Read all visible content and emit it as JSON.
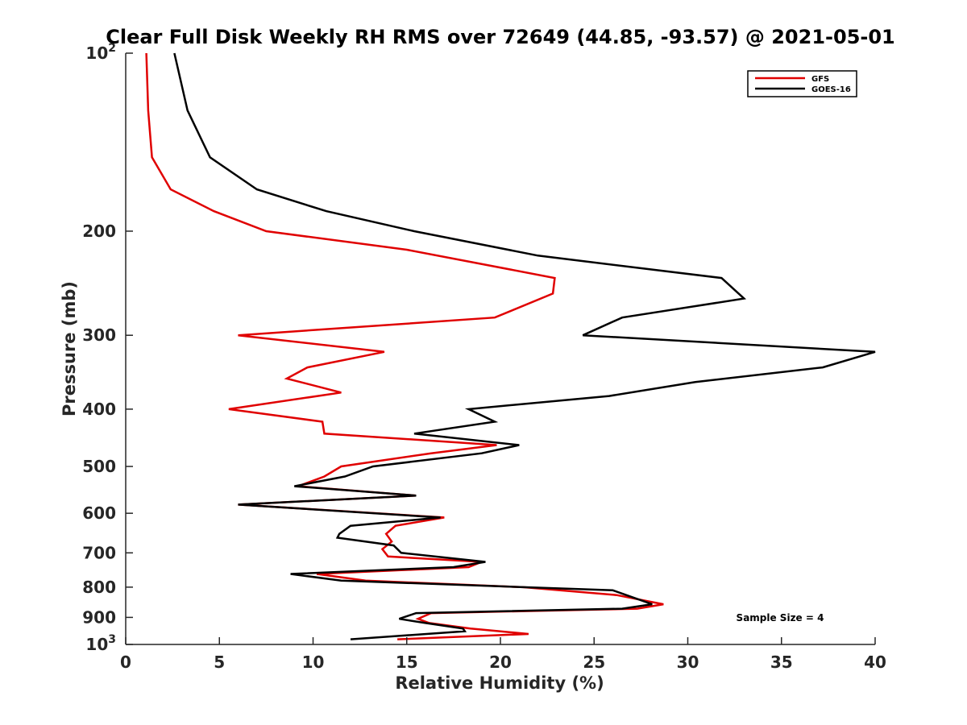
{
  "chart_data": {
    "type": "line",
    "title": "Clear Full Disk Weekly RH RMS over 72649 (44.85, -93.57) @ 2021-05-01",
    "xlabel": "Relative Humidity (%)",
    "ylabel": "Pressure (mb)",
    "xlim": [
      0,
      40
    ],
    "ylim": [
      100,
      1000
    ],
    "yscale": "log",
    "y_reversed": true,
    "grid": false,
    "legend_position": "top-right",
    "annotation": "Sample Size = 4",
    "x_ticks": [
      "0",
      "5",
      "10",
      "15",
      "20",
      "25",
      "30",
      "35",
      "40"
    ],
    "x_tick_values": [
      0,
      5,
      10,
      15,
      20,
      25,
      30,
      35,
      40
    ],
    "y_ticks": [
      {
        "value": 100,
        "base": "10",
        "exp": "2"
      },
      {
        "value": 200,
        "base": "200",
        "exp": ""
      },
      {
        "value": 300,
        "base": "300",
        "exp": ""
      },
      {
        "value": 400,
        "base": "400",
        "exp": ""
      },
      {
        "value": 500,
        "base": "500",
        "exp": ""
      },
      {
        "value": 600,
        "base": "600",
        "exp": ""
      },
      {
        "value": 700,
        "base": "700",
        "exp": ""
      },
      {
        "value": 800,
        "base": "800",
        "exp": ""
      },
      {
        "value": 900,
        "base": "900",
        "exp": ""
      },
      {
        "value": 1000,
        "base": "10",
        "exp": "3"
      }
    ],
    "series": [
      {
        "name": "GFS",
        "color": "#e00000",
        "points": [
          [
            1.1,
            100
          ],
          [
            1.2,
            125
          ],
          [
            1.4,
            150
          ],
          [
            2.4,
            170
          ],
          [
            4.7,
            185
          ],
          [
            7.5,
            200
          ],
          [
            15,
            215
          ],
          [
            22.9,
            240
          ],
          [
            22.8,
            255
          ],
          [
            19.7,
            280
          ],
          [
            6.0,
            300
          ],
          [
            13.8,
            320
          ],
          [
            9.7,
            340
          ],
          [
            8.6,
            355
          ],
          [
            11.5,
            375
          ],
          [
            5.5,
            400
          ],
          [
            10.5,
            420
          ],
          [
            10.6,
            440
          ],
          [
            19.8,
            460
          ],
          [
            16.3,
            475
          ],
          [
            11.5,
            500
          ],
          [
            10.6,
            520
          ],
          [
            9.2,
            540
          ],
          [
            15.5,
            560
          ],
          [
            6.0,
            580
          ],
          [
            17.0,
            610
          ],
          [
            14.4,
            630
          ],
          [
            13.9,
            650
          ],
          [
            14.2,
            670
          ],
          [
            13.7,
            690
          ],
          [
            14.0,
            710
          ],
          [
            19.0,
            725
          ],
          [
            18.3,
            740
          ],
          [
            10.2,
            760
          ],
          [
            12.8,
            780
          ],
          [
            21.2,
            800
          ],
          [
            26.2,
            825
          ],
          [
            28.7,
            855
          ],
          [
            27.3,
            870
          ],
          [
            16.3,
            885
          ],
          [
            15.6,
            905
          ],
          [
            16.2,
            920
          ],
          [
            18.4,
            940
          ],
          [
            21.5,
            960
          ],
          [
            14.5,
            980
          ]
        ]
      },
      {
        "name": "GOES-16",
        "color": "#000000",
        "points": [
          [
            2.6,
            100
          ],
          [
            3.3,
            125
          ],
          [
            4.5,
            150
          ],
          [
            7.0,
            170
          ],
          [
            10.7,
            185
          ],
          [
            15.4,
            200
          ],
          [
            22.0,
            220
          ],
          [
            31.8,
            240
          ],
          [
            33.0,
            260
          ],
          [
            26.5,
            280
          ],
          [
            24.4,
            300
          ],
          [
            40.0,
            320
          ],
          [
            37.2,
            340
          ],
          [
            30.4,
            360
          ],
          [
            25.8,
            380
          ],
          [
            18.3,
            400
          ],
          [
            19.7,
            420
          ],
          [
            15.4,
            440
          ],
          [
            21.0,
            460
          ],
          [
            19.0,
            475
          ],
          [
            13.2,
            500
          ],
          [
            11.7,
            520
          ],
          [
            9.0,
            540
          ],
          [
            15.5,
            560
          ],
          [
            6.0,
            580
          ],
          [
            16.8,
            610
          ],
          [
            12.0,
            630
          ],
          [
            11.4,
            650
          ],
          [
            11.3,
            660
          ],
          [
            14.3,
            680
          ],
          [
            14.7,
            700
          ],
          [
            19.2,
            725
          ],
          [
            17.5,
            740
          ],
          [
            8.8,
            760
          ],
          [
            11.5,
            780
          ],
          [
            26.0,
            810
          ],
          [
            28.1,
            855
          ],
          [
            26.5,
            870
          ],
          [
            15.5,
            885
          ],
          [
            14.6,
            905
          ],
          [
            16.0,
            920
          ],
          [
            18.0,
            940
          ],
          [
            18.1,
            950
          ],
          [
            12.0,
            980
          ]
        ]
      }
    ]
  }
}
